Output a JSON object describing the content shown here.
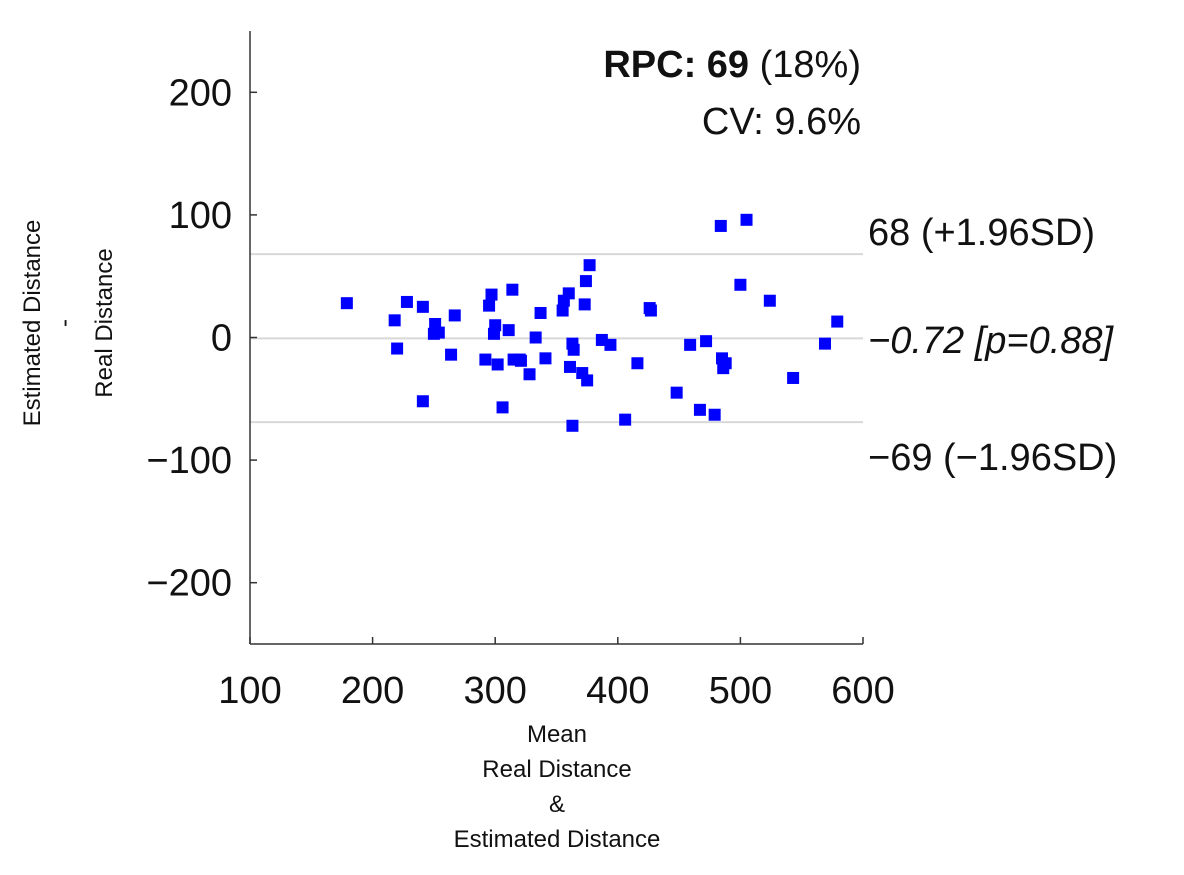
{
  "chart_data": {
    "type": "scatter",
    "xlabel": [
      "Mean",
      "Real Distance",
      "&",
      "Estimated Distance"
    ],
    "ylabel": [
      "Estimated Distance",
      "-",
      "Real Distance"
    ],
    "xlim": [
      100,
      600
    ],
    "ylim": [
      -250,
      250
    ],
    "xticks": [
      100,
      200,
      300,
      400,
      500,
      600
    ],
    "yticks": [
      200,
      100,
      0,
      -100,
      -200
    ],
    "xtick_labels": [
      "100",
      "200",
      "300",
      "400",
      "500",
      "600"
    ],
    "ytick_labels": [
      "200",
      "100",
      "0",
      "−100",
      "−200"
    ],
    "grid": false,
    "marker_color": "#0000ff",
    "reference_line_color": "#d8d8d8",
    "reference_lines": [
      {
        "y": 68,
        "label": "68 (+1.96SD)",
        "style": "normal"
      },
      {
        "y": -0.72,
        "label": "−0.72 [p=0.88]",
        "style": "italic"
      },
      {
        "y": -69,
        "label": "−69 (−1.96SD)",
        "style": "normal"
      }
    ],
    "stats": {
      "rpc_label": "RPC: 69",
      "rpc_percent": " (18%)",
      "cv": "CV: 9.6%"
    },
    "points": [
      [
        179,
        28
      ],
      [
        218,
        14
      ],
      [
        220,
        -9
      ],
      [
        228,
        29
      ],
      [
        241,
        25
      ],
      [
        241,
        -52
      ],
      [
        250,
        3
      ],
      [
        251,
        11
      ],
      [
        254,
        4
      ],
      [
        264,
        -14
      ],
      [
        267,
        18
      ],
      [
        292,
        -18
      ],
      [
        295,
        26
      ],
      [
        297,
        35
      ],
      [
        299,
        3
      ],
      [
        300,
        10
      ],
      [
        302,
        -22
      ],
      [
        306,
        -57
      ],
      [
        311,
        6
      ],
      [
        314,
        39
      ],
      [
        315,
        -18
      ],
      [
        320,
        -18
      ],
      [
        321,
        -19
      ],
      [
        328,
        -30
      ],
      [
        333,
        0
      ],
      [
        337,
        20
      ],
      [
        341,
        -17
      ],
      [
        355,
        22
      ],
      [
        356,
        30
      ],
      [
        360,
        36
      ],
      [
        361,
        -24
      ],
      [
        363,
        -72
      ],
      [
        363,
        -5
      ],
      [
        364,
        -10
      ],
      [
        371,
        -29
      ],
      [
        373,
        27
      ],
      [
        374,
        46
      ],
      [
        375,
        -35
      ],
      [
        377,
        59
      ],
      [
        387,
        -2
      ],
      [
        394,
        -6
      ],
      [
        406,
        -67
      ],
      [
        416,
        -21
      ],
      [
        426,
        24
      ],
      [
        427,
        22
      ],
      [
        448,
        -45
      ],
      [
        459,
        -6
      ],
      [
        467,
        -59
      ],
      [
        472,
        -3
      ],
      [
        479,
        -63
      ],
      [
        484,
        91
      ],
      [
        485,
        -17
      ],
      [
        486,
        -25
      ],
      [
        488,
        -21
      ],
      [
        500,
        43
      ],
      [
        505,
        96
      ],
      [
        524,
        30
      ],
      [
        543,
        -33
      ],
      [
        569,
        -5
      ],
      [
        579,
        13
      ]
    ]
  }
}
